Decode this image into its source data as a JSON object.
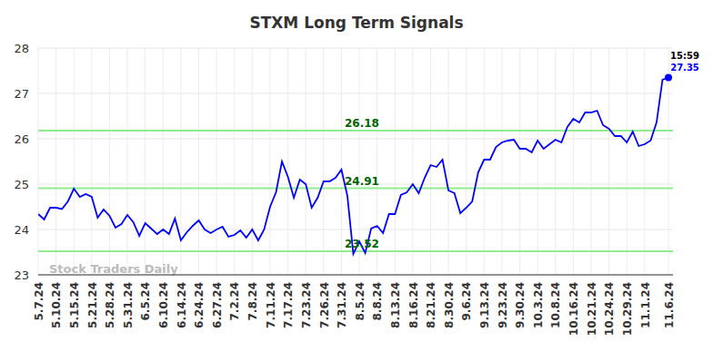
{
  "chart_data": {
    "type": "line",
    "title": "STXM Long Term Signals",
    "categories": [
      "5.7.24",
      null,
      null,
      "5.10.24",
      null,
      null,
      "5.15.24",
      null,
      null,
      "5.21.24",
      null,
      null,
      "5.28.24",
      null,
      null,
      "5.31.24",
      null,
      null,
      "6.5.24",
      null,
      null,
      "6.10.24",
      null,
      null,
      "6.14.24",
      null,
      null,
      "6.24.24",
      null,
      null,
      "6.27.24",
      null,
      null,
      "7.2.24",
      null,
      null,
      "7.8.24",
      null,
      null,
      "7.11.24",
      null,
      null,
      "7.17.24",
      null,
      null,
      "7.23.24",
      null,
      null,
      "7.26.24",
      null,
      null,
      "7.31.24",
      null,
      null,
      "8.5.24",
      null,
      null,
      "8.8.24",
      null,
      null,
      "8.13.24",
      null,
      null,
      "8.16.24",
      null,
      null,
      "8.21.24",
      null,
      null,
      "8.30.24",
      null,
      null,
      "9.6.24",
      null,
      null,
      "9.13.24",
      null,
      null,
      "9.23.24",
      null,
      null,
      "9.30.24",
      null,
      null,
      "10.3.24",
      null,
      null,
      "10.8.24",
      null,
      null,
      "10.16.24",
      null,
      null,
      "10.21.24",
      null,
      null,
      "10.24.24",
      null,
      null,
      "10.29.24",
      null,
      null,
      "11.1.24",
      null,
      null,
      null,
      "11.6.24"
    ],
    "values": [
      24.34,
      24.22,
      24.48,
      24.48,
      24.45,
      24.62,
      24.9,
      24.72,
      24.78,
      24.72,
      24.26,
      24.44,
      24.3,
      24.04,
      24.12,
      24.32,
      24.16,
      23.86,
      24.14,
      24.02,
      23.9,
      24.0,
      23.9,
      24.24,
      23.76,
      23.94,
      24.08,
      24.2,
      24.0,
      23.92,
      24.0,
      24.06,
      23.84,
      23.88,
      23.98,
      23.82,
      24.0,
      23.76,
      24.0,
      24.5,
      24.82,
      25.5,
      25.16,
      24.7,
      25.1,
      25.0,
      24.48,
      24.7,
      25.06,
      25.06,
      25.14,
      25.32,
      24.74,
      23.46,
      23.74,
      23.48,
      24.02,
      24.08,
      23.92,
      24.34,
      24.34,
      24.76,
      24.82,
      25.0,
      24.8,
      25.14,
      25.42,
      25.38,
      25.54,
      24.86,
      24.8,
      24.36,
      24.48,
      24.62,
      25.26,
      25.54,
      25.54,
      25.82,
      25.92,
      25.96,
      25.98,
      25.78,
      25.78,
      25.7,
      25.96,
      25.78,
      25.88,
      25.98,
      25.92,
      26.26,
      26.44,
      26.36,
      26.58,
      26.58,
      26.62,
      26.3,
      26.22,
      26.06,
      26.06,
      25.92,
      26.16,
      25.84,
      25.88,
      25.96,
      26.36,
      27.3,
      27.35
    ],
    "color": "#0000ff",
    "ylim": [
      23,
      28
    ],
    "yticks": [
      23,
      24,
      25,
      26,
      27,
      28
    ],
    "grid": true,
    "levels": [
      26.18,
      24.91,
      23.52
    ],
    "level_color": "#90ee90",
    "time_label": "15:59",
    "watermark": "Stock Traders Daily"
  }
}
